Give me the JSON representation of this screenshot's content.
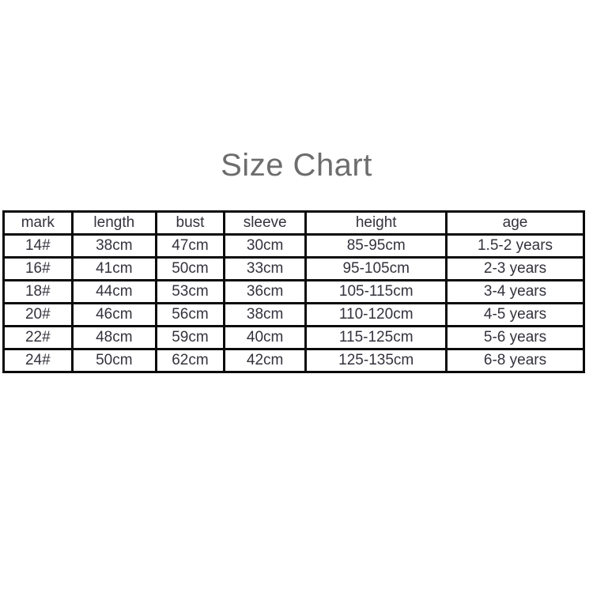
{
  "title": "Size Chart",
  "colors": {
    "background": "#ffffff",
    "title_text": "#6d6d6d",
    "table_text": "#33333d",
    "table_border": "#0b0b0b"
  },
  "chart_data": {
    "type": "table",
    "title": "Size Chart",
    "columns": [
      "mark",
      "length",
      "bust",
      "sleeve",
      "height",
      "age"
    ],
    "rows": [
      [
        "14#",
        "38cm",
        "47cm",
        "30cm",
        "85-95cm",
        "1.5-2 years"
      ],
      [
        "16#",
        "41cm",
        "50cm",
        "33cm",
        "95-105cm",
        "2-3 years"
      ],
      [
        "18#",
        "44cm",
        "53cm",
        "36cm",
        "105-115cm",
        "3-4 years"
      ],
      [
        "20#",
        "46cm",
        "56cm",
        "38cm",
        "110-120cm",
        "4-5 years"
      ],
      [
        "22#",
        "48cm",
        "59cm",
        "40cm",
        "115-125cm",
        "5-6 years"
      ],
      [
        "24#",
        "50cm",
        "62cm",
        "42cm",
        "125-135cm",
        "6-8 years"
      ]
    ]
  }
}
